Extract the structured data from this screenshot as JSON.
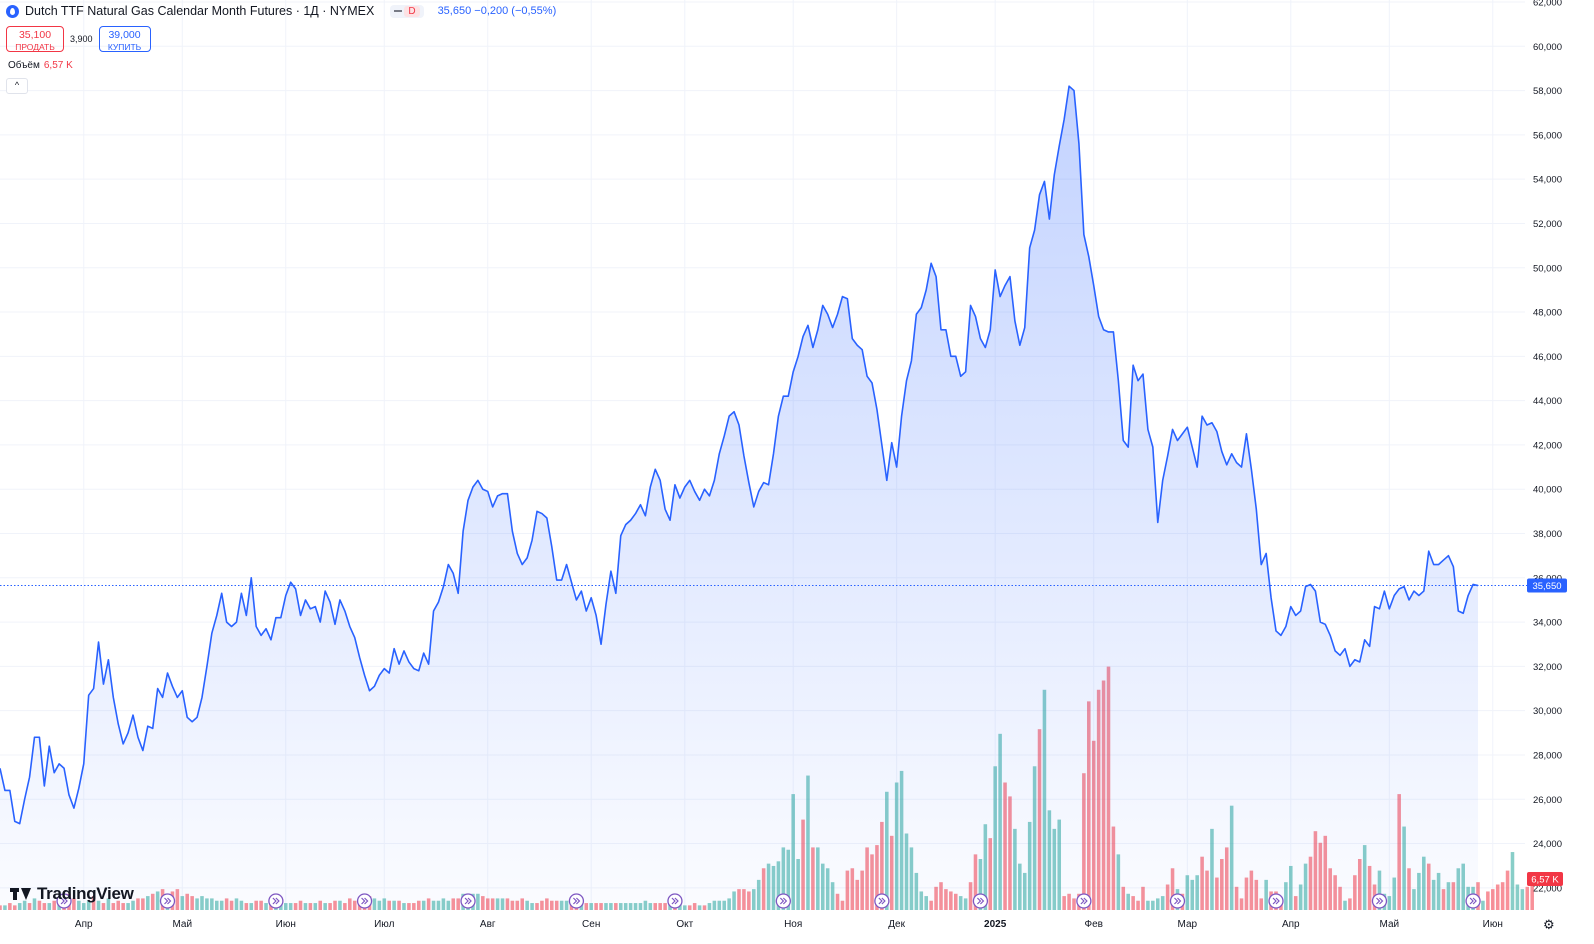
{
  "header": {
    "title": "Dutch TTF Natural Gas Calendar Month Futures · 1Д · NYMEX",
    "badge": "D",
    "last": "35,650",
    "change": "−0,200 (−0,55%)"
  },
  "trade": {
    "sell_price": "35,100",
    "sell_label": "ПРОДАТЬ",
    "spread": "3,900",
    "buy_price": "39,000",
    "buy_label": "КУПИТЬ"
  },
  "volume": {
    "label": "Объём",
    "value": "6,57 K"
  },
  "collapse_glyph": "^",
  "logo": "TradingView",
  "colors": {
    "line": "#2962ff",
    "up": "#26a69a",
    "down": "#f23645"
  },
  "chart_data": {
    "type": "area",
    "title": "Dutch TTF Natural Gas Calendar Month Futures · 1Д · NYMEX",
    "ylim": [
      21000,
      62000
    ],
    "y_ticks": [
      22000,
      24000,
      26000,
      28000,
      30000,
      32000,
      34000,
      36000,
      38000,
      40000,
      42000,
      44000,
      46000,
      48000,
      50000,
      52000,
      54000,
      56000,
      58000,
      60000,
      62000
    ],
    "y_tick_labels": [
      "22,000",
      "24,000",
      "26,000",
      "28,000",
      "30,000",
      "32,000",
      "34,000",
      "36,000",
      "38,000",
      "40,000",
      "42,000",
      "44,000",
      "46,000",
      "48,000",
      "50,000",
      "52,000",
      "54,000",
      "56,000",
      "58,000",
      "60,000",
      "62,000"
    ],
    "x_labels": [
      "Апр",
      "Май",
      "Июн",
      "Июл",
      "Авг",
      "Сен",
      "Окт",
      "Ноя",
      "Дек",
      "2025",
      "Фев",
      "Мар",
      "Апр",
      "Май",
      "Июн"
    ],
    "x_label_index": [
      17,
      37,
      58,
      78,
      99,
      120,
      139,
      161,
      182,
      202,
      222,
      241,
      262,
      282,
      303
    ],
    "last_price": 35650,
    "last_price_label": "35,650",
    "volume_last_label": "6,57 K",
    "event_marker_index": [
      13,
      34,
      56,
      74,
      95,
      117,
      137,
      159,
      179,
      199,
      220,
      239,
      259,
      280,
      299
    ],
    "series": [
      {
        "values": [
          27400,
          26400,
          26400,
          25000,
          24900,
          26000,
          27000,
          28800,
          28800,
          26600,
          28400,
          27200,
          27600,
          27400,
          26200,
          25600,
          26500,
          27600,
          30700,
          31000,
          33100,
          31200,
          32300,
          30600,
          29400,
          28500,
          29000,
          29800,
          28800,
          28200,
          29300,
          29200,
          31000,
          30600,
          31700,
          31100,
          30600,
          30900,
          29700,
          29500,
          29700,
          30600,
          32000,
          33500,
          34300,
          35300,
          34000,
          33800,
          34000,
          35300,
          34300,
          36000,
          33800,
          33400,
          33700,
          33200,
          34200,
          34200,
          35200,
          35800,
          35500,
          34300,
          35000,
          34600,
          34700,
          34000,
          35400,
          34900,
          33900,
          35000,
          34500,
          33800,
          33300,
          32400,
          31600,
          30900,
          31100,
          31600,
          31900,
          31700,
          32800,
          32100,
          32700,
          32200,
          31900,
          31800,
          32600,
          32100,
          34500,
          34900,
          35600,
          36600,
          36200,
          35300,
          38100,
          39500,
          40100,
          40400,
          40000,
          39900,
          39200,
          39700,
          39800,
          39800,
          38100,
          37100,
          36600,
          36900,
          37700,
          39000,
          38900,
          38700,
          37400,
          35900,
          35900,
          36600,
          35800,
          35000,
          35400,
          34500,
          35100,
          34300,
          33000,
          34800,
          36300,
          35300,
          37900,
          38400,
          38600,
          38900,
          39300,
          38800,
          40100,
          40900,
          40400,
          39100,
          38600,
          40200,
          39600,
          40100,
          40400,
          39900,
          39500,
          40000,
          39700,
          40400,
          41600,
          42400,
          43300,
          43500,
          42900,
          41500,
          40300,
          39200,
          39900,
          40300,
          40200,
          41600,
          43300,
          44200,
          44200,
          45300,
          46000,
          46900,
          47400,
          46400,
          47200,
          48300,
          47900,
          47300,
          47900,
          48700,
          48600,
          46800,
          46500,
          46300,
          45100,
          44800,
          43600,
          42000,
          40400,
          42100,
          41000,
          43300,
          44900,
          45800,
          47900,
          48200,
          49000,
          50200,
          49600,
          47200,
          47200,
          46000,
          46000,
          45100,
          45300,
          48300,
          47800,
          46800,
          46400,
          47200,
          49900,
          48700,
          49200,
          49600,
          47600,
          46500,
          47300,
          50900,
          51700,
          53300,
          53900,
          52200,
          54200,
          55500,
          56700,
          58200,
          58000,
          55600,
          51500,
          50500,
          49200,
          47800,
          47200,
          47100,
          47100,
          44900,
          42200,
          41900,
          45600,
          44900,
          45200,
          42700,
          41900,
          38500,
          40400,
          41500,
          42700,
          42200,
          42500,
          42800,
          41900,
          41000,
          43300,
          42900,
          43000,
          42600,
          41700,
          41100,
          41600,
          41200,
          41000,
          42500,
          40900,
          39100,
          36600,
          37100,
          35100,
          33600,
          33400,
          33800,
          34700,
          34300,
          34500,
          35600,
          35700,
          35400,
          34000,
          33900,
          33400,
          32700,
          32500,
          32800,
          32000,
          32300,
          32200,
          33200,
          32900,
          34700,
          34600,
          35400,
          34600,
          35200,
          35500,
          35600,
          35000,
          35400,
          35200,
          35400,
          37200,
          36600,
          36600,
          36800,
          37000,
          36500,
          34500,
          34400,
          35200,
          35700,
          35650
        ]
      }
    ],
    "volume": {
      "ylim": [
        0,
        11000
      ],
      "values": [
        200,
        200,
        300,
        200,
        300,
        400,
        300,
        500,
        400,
        300,
        300,
        400,
        300,
        300,
        700,
        500,
        400,
        300,
        400,
        600,
        400,
        300,
        500,
        300,
        400,
        300,
        300,
        400,
        500,
        500,
        600,
        700,
        800,
        900,
        700,
        800,
        900,
        600,
        700,
        600,
        500,
        600,
        500,
        500,
        400,
        400,
        500,
        400,
        500,
        400,
        300,
        300,
        400,
        400,
        300,
        300,
        300,
        400,
        300,
        300,
        300,
        400,
        300,
        300,
        300,
        400,
        300,
        300,
        400,
        400,
        300,
        500,
        400,
        400,
        500,
        600,
        500,
        400,
        500,
        400,
        400,
        400,
        300,
        300,
        300,
        400,
        400,
        500,
        400,
        400,
        500,
        400,
        500,
        500,
        700,
        600,
        700,
        700,
        600,
        500,
        500,
        500,
        500,
        500,
        400,
        400,
        500,
        400,
        300,
        300,
        400,
        500,
        400,
        400,
        400,
        400,
        300,
        300,
        300,
        300,
        300,
        300,
        300,
        300,
        300,
        300,
        300,
        300,
        300,
        300,
        300,
        400,
        300,
        300,
        300,
        300,
        300,
        300,
        300,
        200,
        200,
        300,
        200,
        200,
        300,
        400,
        400,
        400,
        500,
        800,
        900,
        900,
        800,
        900,
        1300,
        1800,
        2000,
        1900,
        2100,
        2700,
        2600,
        5000,
        2200,
        3900,
        5800,
        2700,
        2700,
        2000,
        1800,
        1200,
        700,
        400,
        1700,
        1800,
        1300,
        1700,
        2700,
        2400,
        2800,
        3800,
        5100,
        3200,
        5500,
        6000,
        3300,
        2700,
        1600,
        800,
        600,
        400,
        1000,
        1200,
        900,
        800,
        700,
        600,
        500,
        1200,
        2400,
        2200,
        3700,
        3100,
        6200,
        7600,
        5500,
        4900,
        3500,
        2000,
        1600,
        3800,
        6200,
        7800,
        9500,
        4300,
        3500,
        3900,
        600,
        700,
        500,
        700,
        5900,
        9000,
        7300,
        9500,
        9900,
        10500,
        3600,
        2400,
        1000,
        700,
        600,
        400,
        1000,
        400,
        400,
        500,
        600,
        1100,
        1800,
        900,
        700,
        1500,
        1300,
        1500,
        2300,
        1700,
        3500,
        1400,
        2200,
        2700,
        4500,
        1000,
        500,
        1400,
        1700,
        1300,
        500,
        1300,
        800,
        800,
        400,
        1200,
        1900,
        600,
        1100,
        2000,
        2300,
        3400,
        2900,
        3200,
        1800,
        1500,
        1000,
        400,
        500,
        1500,
        2200,
        2800,
        1900,
        1100,
        1700,
        700,
        600,
        1400,
        5000,
        3600,
        1800,
        900,
        1600,
        2300,
        2000,
        1300,
        1600,
        900,
        1200,
        1200,
        1800,
        2000,
        1000,
        1000,
        1200,
        400,
        800,
        900,
        1100,
        1200,
        1700,
        2500,
        1100,
        900,
        1000,
        1200
      ],
      "direction": [
        -1,
        1,
        -1,
        -1,
        1,
        1,
        -1,
        1,
        -1,
        -1,
        1,
        -1,
        1,
        -1,
        -1,
        -1,
        1,
        1,
        1,
        -1,
        1,
        -1,
        1,
        -1,
        -1,
        -1,
        1,
        1,
        -1,
        -1,
        1,
        -1,
        1,
        -1,
        1,
        -1,
        -1,
        1,
        -1,
        -1,
        1,
        1,
        1,
        1,
        1,
        1,
        -1,
        -1,
        1,
        1,
        -1,
        1,
        -1,
        -1,
        1,
        -1,
        1,
        1,
        1,
        1,
        -1,
        -1,
        1,
        -1,
        1,
        -1,
        1,
        -1,
        -1,
        1,
        -1,
        -1,
        -1,
        -1,
        -1,
        -1,
        1,
        1,
        1,
        -1,
        1,
        -1,
        1,
        -1,
        -1,
        -1,
        1,
        -1,
        1,
        1,
        1,
        1,
        -1,
        -1,
        1,
        1,
        1,
        1,
        -1,
        -1,
        -1,
        1,
        1,
        -1,
        -1,
        -1,
        -1,
        1,
        1,
        -1,
        -1,
        -1,
        -1,
        -1,
        1,
        1,
        -1,
        -1,
        1,
        -1,
        1,
        -1,
        -1,
        1,
        1,
        -1,
        1,
        1,
        1,
        1,
        1,
        1,
        1,
        -1,
        -1,
        -1,
        1,
        -1,
        1,
        1,
        -1,
        -1,
        1,
        -1,
        1,
        1,
        1,
        1,
        1,
        1,
        -1,
        -1,
        -1,
        1,
        1,
        -1,
        1,
        1,
        1,
        1,
        1,
        1,
        1,
        -1,
        1,
        -1,
        1,
        1,
        1,
        1,
        -1,
        -1,
        -1,
        -1,
        -1,
        -1,
        -1,
        -1,
        -1,
        -1,
        1,
        -1,
        1,
        1,
        1,
        1,
        1,
        1,
        1,
        -1,
        -1,
        -1,
        -1,
        -1,
        -1,
        1,
        1,
        -1,
        -1,
        1,
        1,
        -1,
        1,
        1,
        -1,
        -1,
        1,
        1,
        1,
        1,
        1,
        -1,
        1,
        1,
        1,
        1,
        -1,
        -1,
        -1,
        -1,
        -1,
        -1,
        -1,
        -1,
        -1,
        -1,
        -1,
        1,
        -1,
        1,
        -1,
        -1,
        -1,
        1,
        1,
        1,
        1,
        -1,
        -1,
        1,
        -1,
        1,
        1,
        1,
        -1,
        -1,
        1,
        -1,
        -1,
        -1,
        1,
        -1,
        -1,
        -1,
        -1,
        -1,
        -1,
        1,
        -1,
        -1,
        -1,
        1,
        1,
        -1,
        1,
        1,
        -1,
        -1,
        -1,
        -1,
        -1,
        -1,
        -1,
        1,
        -1,
        -1,
        -1,
        1,
        -1,
        -1,
        1,
        1,
        1,
        1,
        -1,
        1,
        -1,
        1,
        1,
        1,
        -1,
        1,
        1,
        -1,
        1,
        -1,
        1,
        1,
        1,
        1,
        -1,
        1,
        -1,
        -1,
        -1,
        -1,
        -1,
        1,
        1,
        1,
        -1
      ]
    }
  }
}
